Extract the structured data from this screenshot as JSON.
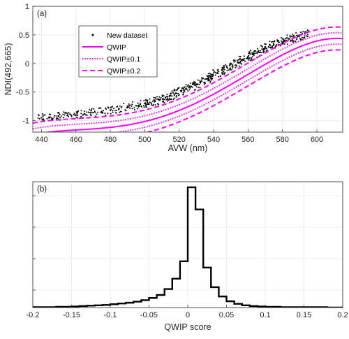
{
  "chart_data": [
    {
      "type": "scatter",
      "panel_label": "(a)",
      "xlabel": "AVW (nm)",
      "ylabel": "NDI(492,665)",
      "xlim": [
        435,
        615
      ],
      "ylim": [
        -1.2,
        1.0
      ],
      "xticks": [
        "440",
        "460",
        "480",
        "500",
        "520",
        "540",
        "560",
        "580",
        "600"
      ],
      "yticks": [
        "-1",
        "-0.5",
        "0",
        "0.5",
        "1"
      ],
      "grid": true,
      "legend_position": "upper-left",
      "legend": [
        "New dataset",
        "QWIP",
        "QWIP±0.1",
        "QWIP±0.2"
      ],
      "colors": {
        "qwip": "#ff00ff",
        "points": "#000000"
      },
      "qwip_model": {
        "type": "polynomial_in_AVW",
        "coefficients": [
          -8.39988474030015e-09,
          1.715532100780679e-05,
          -0.01301670056641901,
          4.357419548276927,
          -544.9715350620652
        ]
      },
      "series": [
        {
          "name": "New dataset",
          "kind": "points",
          "x": [
            440,
            445,
            450,
            455,
            460,
            465,
            470,
            475,
            480,
            485,
            490,
            495,
            500,
            503,
            506,
            509,
            512,
            515,
            518,
            521,
            524,
            527,
            530,
            533,
            536,
            539,
            542,
            545,
            548,
            551,
            554,
            557,
            560,
            563,
            566,
            569,
            572,
            575,
            578,
            581,
            584,
            587,
            590,
            593
          ],
          "y": [
            -0.95,
            -0.94,
            -0.92,
            -0.91,
            -0.9,
            -0.88,
            -0.86,
            -0.84,
            -0.82,
            -0.8,
            -0.77,
            -0.74,
            -0.7,
            -0.68,
            -0.66,
            -0.63,
            -0.6,
            -0.56,
            -0.52,
            -0.48,
            -0.44,
            -0.4,
            -0.36,
            -0.31,
            -0.27,
            -0.22,
            -0.17,
            -0.12,
            -0.08,
            -0.03,
            0.02,
            0.07,
            0.12,
            0.16,
            0.2,
            0.25,
            0.29,
            0.33,
            0.37,
            0.4,
            0.43,
            0.45,
            0.48,
            0.52
          ]
        },
        {
          "name": "QWIP",
          "kind": "line",
          "offset": 0
        },
        {
          "name": "QWIP±0.1",
          "kind": "band",
          "offset": 0.1
        },
        {
          "name": "QWIP±0.2",
          "kind": "band",
          "offset": 0.2
        }
      ]
    },
    {
      "type": "histogram",
      "panel_label": "(b)",
      "xlabel": "QWIP score",
      "xlim": [
        -0.2,
        0.2
      ],
      "xticks": [
        "-0.2",
        "-0.15",
        "-0.1",
        "-0.05",
        "0",
        "0.05",
        "0.1",
        "0.15",
        "0.2"
      ],
      "grid": true,
      "bin_width": 0.01,
      "bin_edges_start": -0.2,
      "counts": [
        1,
        1,
        1,
        2,
        2,
        3,
        4,
        5,
        6,
        7,
        9,
        11,
        13,
        16,
        20,
        26,
        34,
        50,
        78,
        125,
        325,
        265,
        108,
        55,
        30,
        17,
        10,
        6,
        4,
        3,
        2,
        2,
        1,
        1,
        1,
        1,
        1,
        1,
        0,
        0
      ],
      "count_max": 340
    }
  ]
}
